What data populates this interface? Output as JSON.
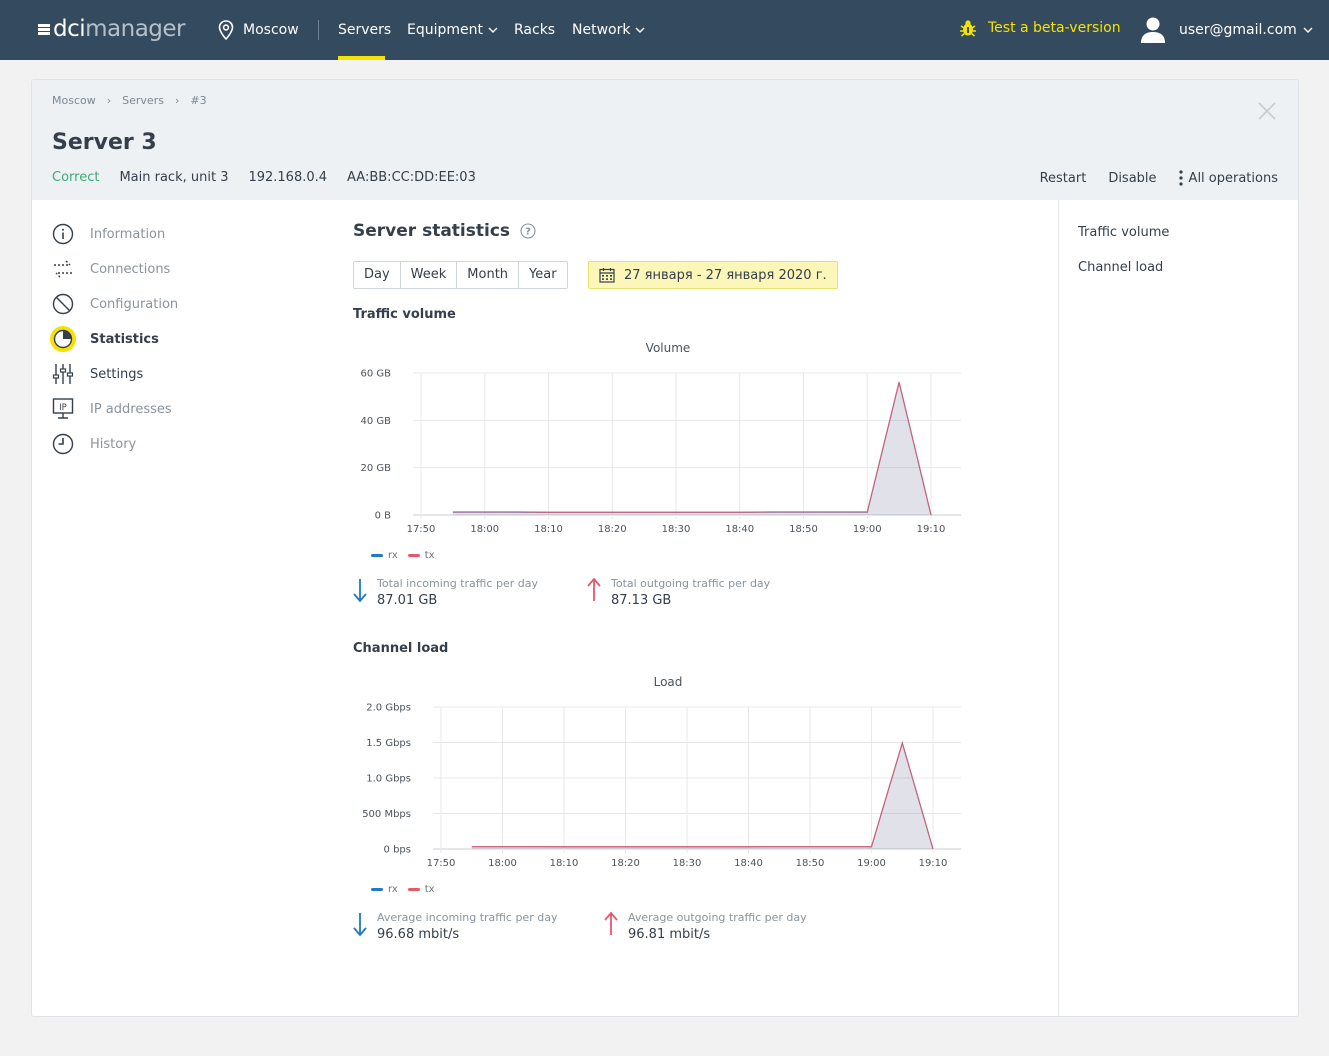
{
  "header": {
    "logo_prefix": "dci",
    "logo_suffix": "manager",
    "location": "Moscow",
    "nav": [
      {
        "label": "Servers"
      },
      {
        "label": "Equipment"
      },
      {
        "label": "Racks"
      },
      {
        "label": "Network"
      }
    ],
    "beta": "Test a beta-version",
    "user": "user@gmail.com"
  },
  "breadcrumb": [
    "Moscow",
    "Servers",
    "#3"
  ],
  "server": {
    "title": "Server 3",
    "status": "Correct",
    "rack": "Main rack, unit 3",
    "ip": "192.168.0.4",
    "mac": "AA:BB:CC:DD:EE:03"
  },
  "actions": {
    "restart": "Restart",
    "disable": "Disable",
    "all": "All operations"
  },
  "sidebar": [
    {
      "label": "Information"
    },
    {
      "label": "Connections"
    },
    {
      "label": "Configuration"
    },
    {
      "label": "Statistics"
    },
    {
      "label": "Settings"
    },
    {
      "label": "IP addresses"
    },
    {
      "label": "History"
    }
  ],
  "right_nav": [
    "Traffic volume",
    "Channel load"
  ],
  "main": {
    "title": "Server statistics",
    "periods": [
      "Day",
      "Week",
      "Month",
      "Year"
    ],
    "date_range": "27 января - 27 января 2020 г."
  },
  "traffic": {
    "section_title": "Traffic volume",
    "in_label": "Total incoming traffic per day",
    "in_value": "87.01 GB",
    "out_label": "Total outgoing traffic per day",
    "out_value": "87.13 GB"
  },
  "channel": {
    "section_title": "Channel load",
    "in_label": "Average incoming traffic per day",
    "in_value": "96.68 mbit/s",
    "out_label": "Average outgoing traffic per day",
    "out_value": "96.81 mbit/s"
  },
  "colors": {
    "rx": "#1f7bc1",
    "tx": "#e35a6a",
    "accent": "#f6e200",
    "status_ok": "#3bab78"
  },
  "chart_data": [
    {
      "type": "area",
      "title": "Volume",
      "x": [
        "17:55",
        "18:00",
        "18:05",
        "18:10",
        "18:15",
        "18:20",
        "18:25",
        "18:30",
        "18:35",
        "18:40",
        "18:45",
        "18:50",
        "18:55",
        "19:00",
        "19:05",
        "19:10"
      ],
      "xticks": [
        "17:50",
        "18:00",
        "18:10",
        "18:20",
        "18:30",
        "18:40",
        "18:50",
        "19:00",
        "19:10"
      ],
      "yticks": [
        "0 B",
        "20 GB",
        "40 GB",
        "60 GB"
      ],
      "ylim": [
        0,
        60
      ],
      "unit": "GB",
      "series": [
        {
          "name": "rx",
          "values": [
            1.2,
            1.2,
            1.2,
            1.1,
            1.1,
            1.1,
            1.1,
            1.1,
            1.1,
            1.1,
            1.2,
            1.2,
            1.2,
            1.2,
            56,
            0
          ]
        },
        {
          "name": "tx",
          "values": [
            1.3,
            1.3,
            1.3,
            1.2,
            1.2,
            1.2,
            1.2,
            1.2,
            1.2,
            1.2,
            1.3,
            1.3,
            1.3,
            1.3,
            56.2,
            0
          ]
        }
      ]
    },
    {
      "type": "area",
      "title": "Load",
      "x": [
        "17:55",
        "18:00",
        "18:05",
        "18:10",
        "18:15",
        "18:20",
        "18:25",
        "18:30",
        "18:35",
        "18:40",
        "18:45",
        "18:50",
        "18:55",
        "19:00",
        "19:05",
        "19:10"
      ],
      "xticks": [
        "17:50",
        "18:00",
        "18:10",
        "18:20",
        "18:30",
        "18:40",
        "18:50",
        "19:00",
        "19:10"
      ],
      "yticks": [
        "0 bps",
        "500 Mbps",
        "1.0 Gbps",
        "1.5 Gbps",
        "2.0 Gbps"
      ],
      "ylim": [
        0,
        2000
      ],
      "unit": "Mbps",
      "series": [
        {
          "name": "rx",
          "values": [
            32,
            32,
            32,
            30,
            30,
            30,
            30,
            30,
            30,
            30,
            32,
            32,
            32,
            32,
            1490,
            0
          ]
        },
        {
          "name": "tx",
          "values": [
            34,
            34,
            34,
            32,
            32,
            32,
            32,
            32,
            32,
            32,
            34,
            34,
            34,
            34,
            1495,
            0
          ]
        }
      ]
    }
  ]
}
